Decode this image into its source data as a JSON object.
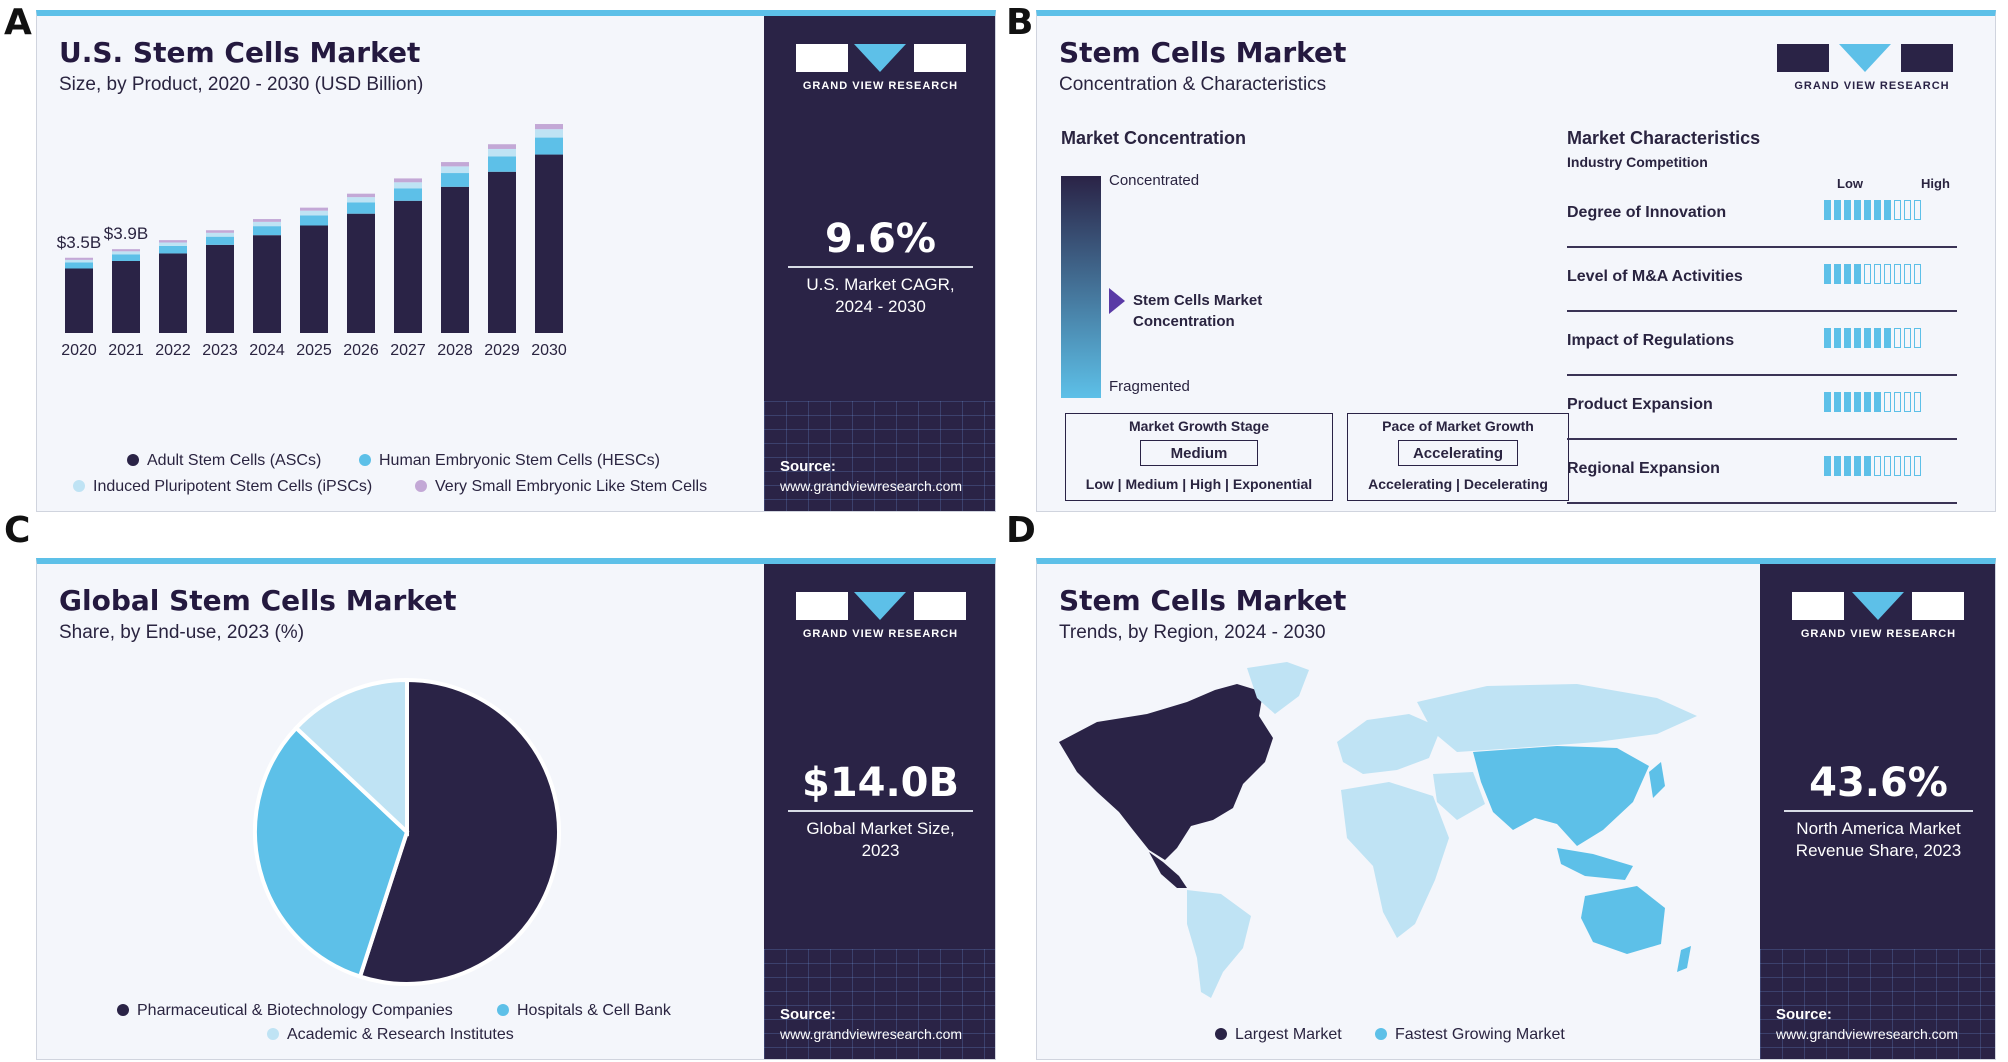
{
  "panel_labels": [
    "A",
    "B",
    "C",
    "D"
  ],
  "brand": {
    "name": "GRAND VIEW RESEARCH",
    "source_label": "Source:",
    "source_url": "www.grandviewresearch.com"
  },
  "colors": {
    "dark": "#2a2346",
    "accent": "#5dc0e8",
    "light_blue": "#bfe3f4",
    "purple": "#c3a8d6",
    "background": "#f4f6fb"
  },
  "panelA": {
    "title": "U.S. Stem Cells Market",
    "subtitle": "Size, by Product, 2020 - 2030 (USD Billion)",
    "stat_value": "9.6%",
    "stat_caption": [
      "U.S. Market CAGR,",
      "2024 - 2030"
    ],
    "legend": [
      "Adult Stem Cells (ASCs)",
      "Human Embryonic Stem Cells (HESCs)",
      "Induced Pluripotent Stem Cells (iPSCs)",
      "Very Small Embryonic Like Stem Cells"
    ]
  },
  "panelB": {
    "title": "Stem Cells Market",
    "subtitle": "Concentration & Characteristics",
    "concentration_heading": "Market Concentration",
    "top_label": "Concentrated",
    "bottom_label": "Fragmented",
    "marker_label": [
      "Stem Cells Market",
      "Concentration"
    ],
    "marker_level": 0.62,
    "growth_stage": {
      "heading": "Market Growth Stage",
      "value": "Medium",
      "options": "Low  |  Medium  |  High  |  Exponential"
    },
    "growth_pace": {
      "heading": "Pace of Market Growth",
      "value": "Accelerating",
      "options": "Accelerating  |  Decelerating"
    },
    "characteristics_heading": "Market Characteristics",
    "characteristics_sub": "Industry Competition",
    "scale_low": "Low",
    "scale_high": "High",
    "scale_max": 10,
    "characteristics": [
      {
        "label": "Degree of Innovation",
        "level": 7
      },
      {
        "label": "Level of M&A Activities",
        "level": 4
      },
      {
        "label": "Impact of Regulations",
        "level": 7
      },
      {
        "label": "Product Expansion",
        "level": 6
      },
      {
        "label": "Regional Expansion",
        "level": 5
      }
    ]
  },
  "panelC": {
    "title": "Global Stem Cells Market",
    "subtitle": "Share, by End-use, 2023 (%)",
    "stat_value": "$14.0B",
    "stat_caption": [
      "Global Market Size,",
      "2023"
    ]
  },
  "panelD": {
    "title": "Stem Cells Market",
    "subtitle": "Trends, by Region, 2024 - 2030",
    "stat_value": "43.6%",
    "stat_caption": [
      "North America Market",
      "Revenue Share, 2023"
    ],
    "legend": [
      "Largest Market",
      "Fastest Growing Market"
    ]
  },
  "chart_data": [
    {
      "type": "bar",
      "stacked": true,
      "title": "U.S. Stem Cells Market",
      "subtitle": "Size, by Product, 2020 - 2030 (USD Billion)",
      "categories": [
        "2020",
        "2021",
        "2022",
        "2023",
        "2024",
        "2025",
        "2026",
        "2027",
        "2028",
        "2029",
        "2030"
      ],
      "series": [
        {
          "name": "Adult Stem Cells (ASCs)",
          "color": "#2a2346",
          "values": [
            3.0,
            3.35,
            3.7,
            4.1,
            4.55,
            5.0,
            5.55,
            6.15,
            6.8,
            7.5,
            8.3
          ]
        },
        {
          "name": "Human Embryonic Stem Cells (HESCs)",
          "color": "#5dc0e8",
          "values": [
            0.28,
            0.31,
            0.35,
            0.38,
            0.42,
            0.47,
            0.52,
            0.58,
            0.64,
            0.71,
            0.79
          ]
        },
        {
          "name": "Induced Pluripotent Stem Cells (iPSCs)",
          "color": "#bfe3f4",
          "values": [
            0.12,
            0.14,
            0.16,
            0.18,
            0.2,
            0.22,
            0.25,
            0.28,
            0.31,
            0.35,
            0.39
          ]
        },
        {
          "name": "Very Small Embryonic Like Stem Cells",
          "color": "#c3a8d6",
          "values": [
            0.1,
            0.1,
            0.11,
            0.12,
            0.13,
            0.14,
            0.16,
            0.18,
            0.2,
            0.22,
            0.24
          ]
        }
      ],
      "data_labels": [
        {
          "category": "2020",
          "text": "$3.5B"
        },
        {
          "category": "2021",
          "text": "$3.9B"
        }
      ],
      "ylim": [
        0,
        10
      ],
      "xlabel": "",
      "ylabel": ""
    },
    {
      "type": "pie",
      "title": "Global Stem Cells Market",
      "subtitle": "Share, by End-use, 2023 (%)",
      "labels": [
        "Pharmaceutical & Biotechnology Companies",
        "Hospitals & Cell Bank",
        "Academic & Research Institutes"
      ],
      "values": [
        55,
        32,
        13
      ],
      "colors": [
        "#2a2346",
        "#5dc0e8",
        "#bfe3f4"
      ]
    }
  ]
}
